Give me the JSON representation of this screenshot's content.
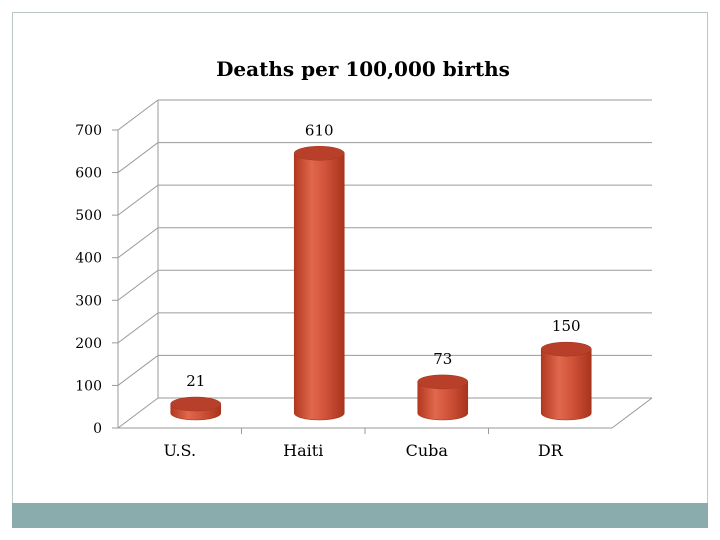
{
  "chart_data": {
    "type": "bar",
    "title": "Deaths per 100,000 births",
    "categories": [
      "U.S.",
      "Haiti",
      "Cuba",
      "DR"
    ],
    "values": [
      21,
      610,
      73,
      150
    ],
    "data_labels": [
      "21",
      "610",
      "73",
      "150"
    ],
    "ylim": [
      0,
      700
    ],
    "yticks": [
      "0",
      "100",
      "200",
      "300",
      "400",
      "500",
      "600",
      "700"
    ],
    "xlabel": "",
    "ylabel": "",
    "grid": true,
    "legend": "none"
  },
  "colors": {
    "bar_fill": "#d2543a",
    "bar_top": "#b8402a",
    "bar_dark": "#a8381f",
    "grid": "#9a9a9a",
    "footer": "#8aacac"
  }
}
